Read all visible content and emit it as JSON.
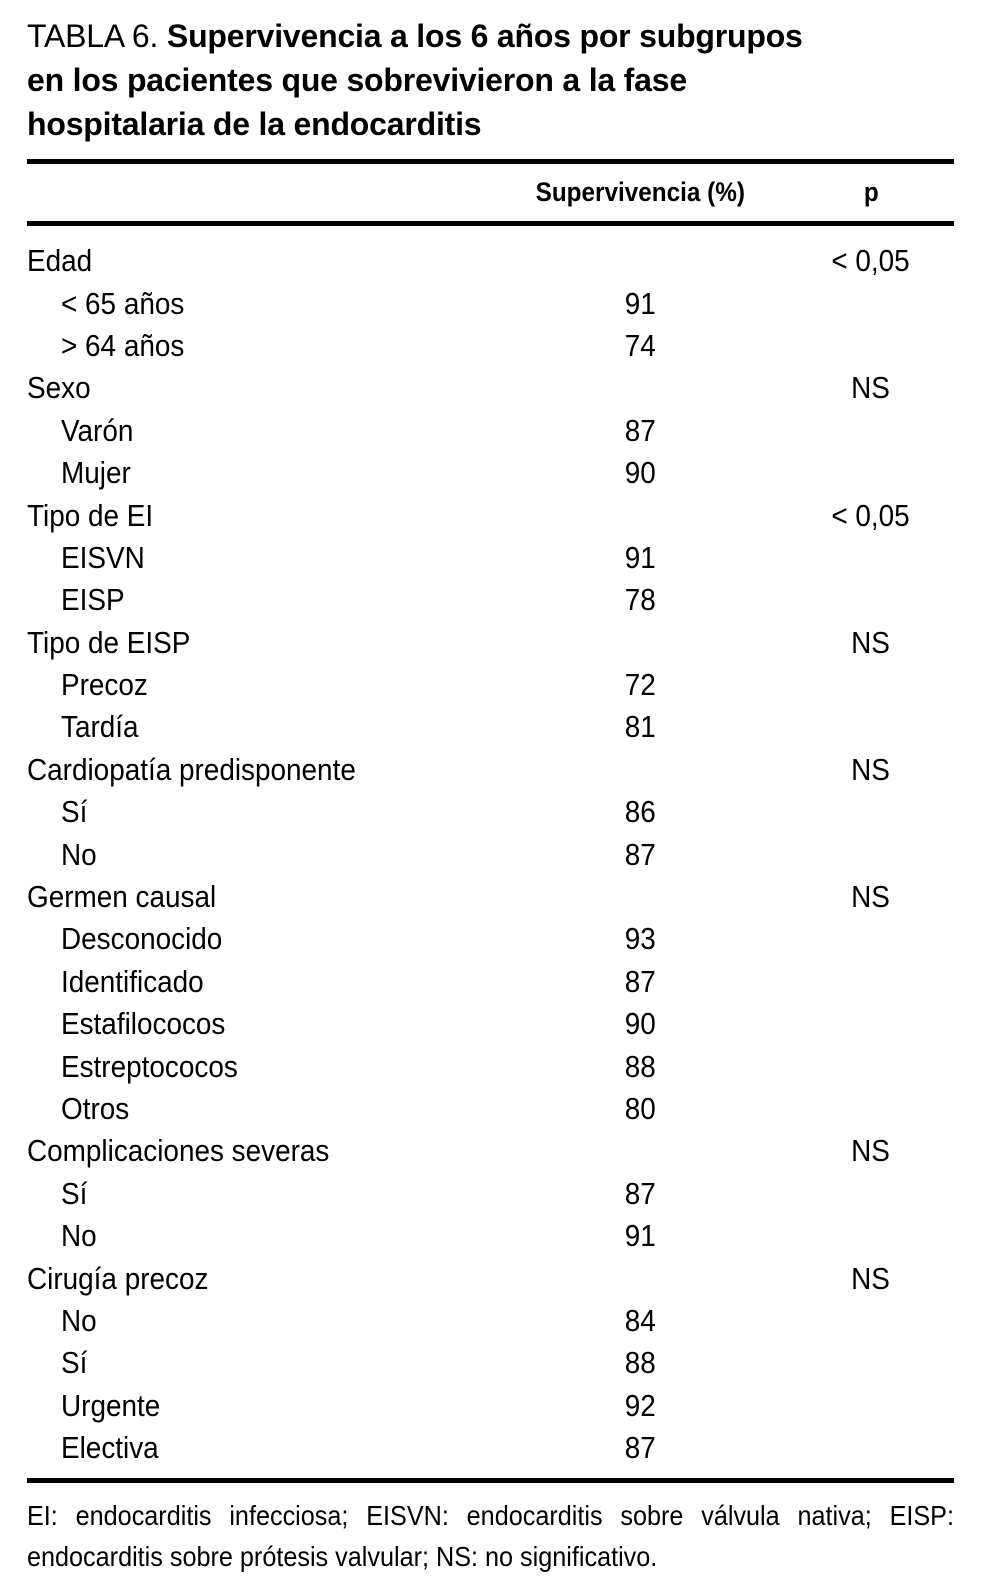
{
  "title": {
    "label": "TABLA 6.",
    "line1_rest": "Supervivencia a los 6 años por subgrupos",
    "line2": "en los pacientes que sobrevivieron a la fase",
    "line3": "hospitalaria de la endocarditis"
  },
  "columns": {
    "survival": "Supervivencia (%)",
    "p": "p"
  },
  "rows": [
    {
      "label": "Edad",
      "indent": false,
      "survival": "",
      "p": "< 0,05"
    },
    {
      "label": "< 65 años",
      "indent": true,
      "survival": "91",
      "p": ""
    },
    {
      "label": "> 64 años",
      "indent": true,
      "survival": "74",
      "p": ""
    },
    {
      "label": "Sexo",
      "indent": false,
      "survival": "",
      "p": "NS"
    },
    {
      "label": "Varón",
      "indent": true,
      "survival": "87",
      "p": ""
    },
    {
      "label": "Mujer",
      "indent": true,
      "survival": "90",
      "p": ""
    },
    {
      "label": "Tipo de EI",
      "indent": false,
      "survival": "",
      "p": "< 0,05"
    },
    {
      "label": "EISVN",
      "indent": true,
      "survival": "91",
      "p": ""
    },
    {
      "label": "EISP",
      "indent": true,
      "survival": "78",
      "p": ""
    },
    {
      "label": "Tipo de EISP",
      "indent": false,
      "survival": "",
      "p": "NS"
    },
    {
      "label": "Precoz",
      "indent": true,
      "survival": "72",
      "p": ""
    },
    {
      "label": "Tardía",
      "indent": true,
      "survival": "81",
      "p": ""
    },
    {
      "label": "Cardiopatía predisponente",
      "indent": false,
      "survival": "",
      "p": "NS"
    },
    {
      "label": "Sí",
      "indent": true,
      "survival": "86",
      "p": ""
    },
    {
      "label": "No",
      "indent": true,
      "survival": "87",
      "p": ""
    },
    {
      "label": "Germen causal",
      "indent": false,
      "survival": "",
      "p": "NS"
    },
    {
      "label": "Desconocido",
      "indent": true,
      "survival": "93",
      "p": ""
    },
    {
      "label": "Identificado",
      "indent": true,
      "survival": "87",
      "p": ""
    },
    {
      "label": "Estafilococos",
      "indent": true,
      "survival": "90",
      "p": ""
    },
    {
      "label": "Estreptococos",
      "indent": true,
      "survival": "88",
      "p": ""
    },
    {
      "label": "Otros",
      "indent": true,
      "survival": "80",
      "p": ""
    },
    {
      "label": "Complicaciones severas",
      "indent": false,
      "survival": "",
      "p": "NS"
    },
    {
      "label": "Sí",
      "indent": true,
      "survival": "87",
      "p": ""
    },
    {
      "label": "No",
      "indent": true,
      "survival": "91",
      "p": ""
    },
    {
      "label": "Cirugía precoz",
      "indent": false,
      "survival": "",
      "p": "NS"
    },
    {
      "label": "No",
      "indent": true,
      "survival": "84",
      "p": ""
    },
    {
      "label": "Sí",
      "indent": true,
      "survival": "88",
      "p": ""
    },
    {
      "label": "Urgente",
      "indent": true,
      "survival": "92",
      "p": ""
    },
    {
      "label": "Electiva",
      "indent": true,
      "survival": "87",
      "p": ""
    }
  ],
  "footnote": {
    "line1": "EI: endocarditis infecciosa; EISVN: endocarditis sobre válvula nativa; EISP:",
    "line2": "endocarditis sobre prótesis valvular; NS: no significativo."
  },
  "colors": {
    "text": "#000000",
    "background": "#ffffff",
    "rule": "#000000"
  }
}
